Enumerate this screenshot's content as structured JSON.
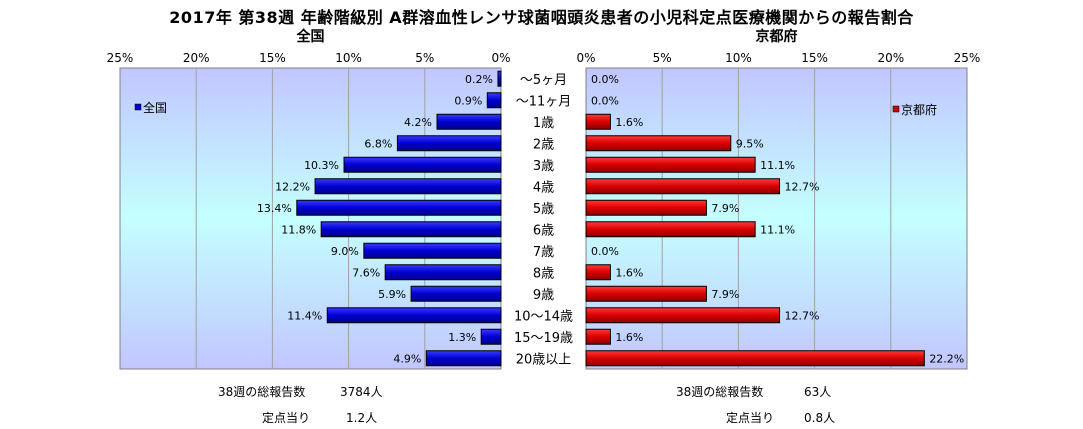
{
  "title": "2017年 第38週 年齢階級別 A群溶血性レンサ球菌咽頭炎患者の小児科定点医療機関からの報告割合",
  "chart_data": {
    "type": "bar",
    "orientation": "horizontal-butterfly",
    "categories": [
      "～5ヶ月",
      "～11ヶ月",
      "1歳",
      "2歳",
      "3歳",
      "4歳",
      "5歳",
      "6歳",
      "7歳",
      "8歳",
      "9歳",
      "10～14歳",
      "15～19歳",
      "20歳以上"
    ],
    "tick_labels": [
      "25%",
      "20%",
      "15%",
      "10%",
      "5%",
      "0%"
    ],
    "tick_labels_right": [
      "0%",
      "5%",
      "10%",
      "15%",
      "20%",
      "25%"
    ],
    "xlim": [
      0,
      25
    ],
    "panels": [
      {
        "name": "全国",
        "header": "全国",
        "legend": "全国",
        "direction": "left",
        "color": "#0000cc",
        "values": [
          0.2,
          0.9,
          4.2,
          6.8,
          10.3,
          12.2,
          13.4,
          11.8,
          9.0,
          7.6,
          5.9,
          11.4,
          1.3,
          4.9
        ],
        "labels": [
          "0.2%",
          "0.9%",
          "4.2%",
          "6.8%",
          "10.3%",
          "12.2%",
          "13.4%",
          "11.8%",
          "9.0%",
          "7.6%",
          "5.9%",
          "11.4%",
          "1.3%",
          "4.9%"
        ]
      },
      {
        "name": "京都府",
        "header": "京都府",
        "legend": "京都府",
        "direction": "right",
        "color": "#cc0000",
        "values": [
          0.0,
          0.0,
          1.6,
          9.5,
          11.1,
          12.7,
          7.9,
          11.1,
          0.0,
          1.6,
          7.9,
          12.7,
          1.6,
          22.2
        ],
        "labels": [
          "0.0%",
          "0.0%",
          "1.6%",
          "9.5%",
          "11.1%",
          "12.7%",
          "7.9%",
          "11.1%",
          "0.0%",
          "1.6%",
          "7.9%",
          "12.7%",
          "1.6%",
          "22.2%"
        ]
      }
    ],
    "grid": true,
    "legend_position": "left-top / right-top"
  },
  "stats": {
    "national_total_label": "38週の総報告数",
    "national_total_value": "3784人",
    "national_per_label": "定点当り",
    "national_per_value": "1.2人",
    "kyoto_total_label": "38週の総報告数",
    "kyoto_total_value": "63人",
    "kyoto_per_label": "定点当り",
    "kyoto_per_value": "0.8人"
  }
}
